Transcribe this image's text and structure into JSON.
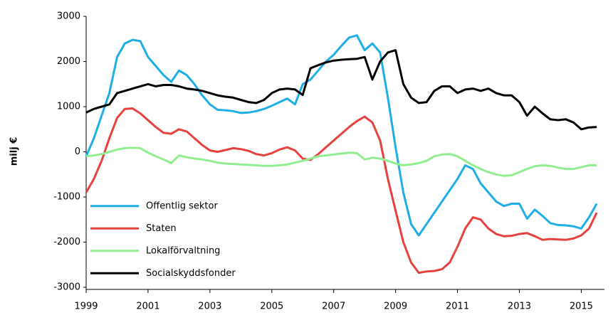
{
  "chart_data": {
    "type": "line",
    "y_label": "milj €",
    "x": [
      1999,
      1999.25,
      1999.5,
      1999.75,
      2000,
      2000.25,
      2000.5,
      2000.75,
      2001,
      2001.25,
      2001.5,
      2001.75,
      2002,
      2002.25,
      2002.5,
      2002.75,
      2003,
      2003.25,
      2003.5,
      2003.75,
      2004,
      2004.25,
      2004.5,
      2004.75,
      2005,
      2005.25,
      2005.5,
      2005.75,
      2006,
      2006.25,
      2006.5,
      2006.75,
      2007,
      2007.25,
      2007.5,
      2007.75,
      2008,
      2008.25,
      2008.5,
      2008.75,
      2009,
      2009.25,
      2009.5,
      2009.75,
      2010,
      2010.25,
      2010.5,
      2010.75,
      2011,
      2011.25,
      2011.5,
      2011.75,
      2012,
      2012.25,
      2012.5,
      2012.75,
      2013,
      2013.25,
      2013.5,
      2013.75,
      2014,
      2014.25,
      2014.5,
      2014.75,
      2015,
      2015.25,
      2015.5
    ],
    "series": [
      {
        "name": "Offentlig sektor",
        "color": "#1eaee6",
        "values": [
          -100,
          300,
          800,
          1300,
          2100,
          2400,
          2480,
          2450,
          2100,
          1900,
          1700,
          1550,
          1800,
          1700,
          1500,
          1250,
          1050,
          930,
          920,
          900,
          860,
          870,
          900,
          950,
          1020,
          1100,
          1180,
          1050,
          1500,
          1600,
          1800,
          2000,
          2150,
          2350,
          2530,
          2580,
          2250,
          2400,
          2200,
          1200,
          100,
          -900,
          -1600,
          -1850,
          -1600,
          -1350,
          -1100,
          -850,
          -600,
          -300,
          -380,
          -700,
          -900,
          -1100,
          -1200,
          -1150,
          -1150,
          -1480,
          -1280,
          -1420,
          -1580,
          -1620,
          -1630,
          -1650,
          -1700,
          -1450,
          -1150
        ]
      },
      {
        "name": "Staten",
        "color": "#e8403c",
        "values": [
          -900,
          -600,
          -200,
          300,
          750,
          950,
          960,
          850,
          700,
          550,
          420,
          400,
          500,
          450,
          300,
          150,
          30,
          0,
          40,
          80,
          60,
          20,
          -50,
          -80,
          -30,
          50,
          100,
          30,
          -150,
          -180,
          -50,
          100,
          250,
          400,
          550,
          680,
          780,
          650,
          250,
          -600,
          -1300,
          -2000,
          -2450,
          -2680,
          -2650,
          -2640,
          -2600,
          -2450,
          -2100,
          -1700,
          -1450,
          -1500,
          -1700,
          -1820,
          -1870,
          -1860,
          -1820,
          -1800,
          -1870,
          -1950,
          -1930,
          -1940,
          -1950,
          -1920,
          -1850,
          -1700,
          -1350
        ]
      },
      {
        "name": "Lokalförvaltning",
        "color": "#90ee90",
        "values": [
          -100,
          -80,
          -50,
          0,
          50,
          80,
          90,
          80,
          -20,
          -100,
          -170,
          -250,
          -80,
          -120,
          -150,
          -170,
          -200,
          -240,
          -260,
          -270,
          -280,
          -290,
          -300,
          -310,
          -310,
          -300,
          -280,
          -240,
          -200,
          -150,
          -100,
          -80,
          -60,
          -40,
          -20,
          -30,
          -170,
          -130,
          -150,
          -200,
          -260,
          -300,
          -280,
          -250,
          -200,
          -100,
          -60,
          -50,
          -100,
          -200,
          -300,
          -380,
          -450,
          -500,
          -530,
          -520,
          -450,
          -380,
          -320,
          -300,
          -310,
          -350,
          -380,
          -380,
          -340,
          -300,
          -300
        ]
      },
      {
        "name": "Socialskyddsfonder",
        "color": "#000000",
        "values": [
          870,
          950,
          1000,
          1050,
          1300,
          1350,
          1400,
          1450,
          1500,
          1450,
          1480,
          1480,
          1450,
          1400,
          1380,
          1350,
          1300,
          1250,
          1220,
          1200,
          1150,
          1100,
          1080,
          1150,
          1300,
          1380,
          1400,
          1380,
          1260,
          1850,
          1920,
          1980,
          2020,
          2040,
          2050,
          2060,
          2100,
          1600,
          2000,
          2200,
          2250,
          1500,
          1200,
          1080,
          1100,
          1350,
          1450,
          1450,
          1300,
          1380,
          1400,
          1350,
          1400,
          1300,
          1250,
          1250,
          1100,
          800,
          1000,
          850,
          720,
          700,
          720,
          650,
          500,
          540,
          550
        ]
      }
    ],
    "xlim": [
      1999,
      2015.75
    ],
    "xticks": [
      1999,
      2001,
      2003,
      2005,
      2007,
      2009,
      2011,
      2013,
      2015
    ],
    "ylim": [
      -3000,
      3000
    ],
    "yticks": [
      -3000,
      -2000,
      -1000,
      0,
      1000,
      2000,
      3000
    ],
    "grid": false,
    "legend": "lower left"
  }
}
